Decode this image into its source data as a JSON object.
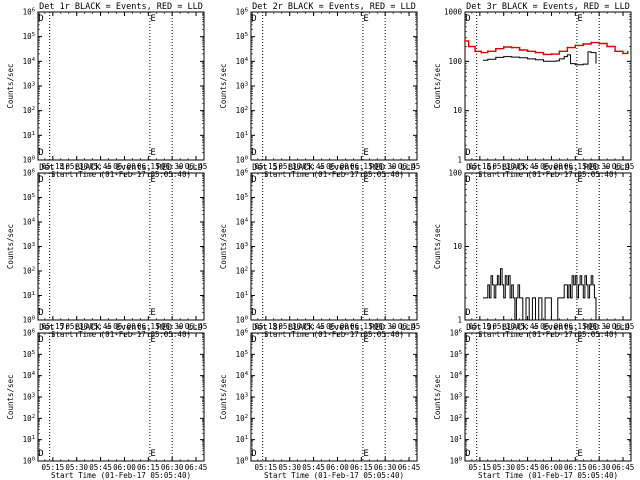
{
  "figure": {
    "background": "#ffffff",
    "event_color": "#000000",
    "lld_color": "#e00000"
  },
  "chart_data": [
    {
      "type": "line",
      "title": "Det 1r BLACK = Events, RED = LLD",
      "xlabel": "Start Time (01-Feb-17 05:05:40)",
      "ylabel": "Counts/sec",
      "log_y": true,
      "ylim": [
        1,
        1000000
      ],
      "yticks": [
        "10^0",
        "10^1",
        "10^2",
        "10^3",
        "10^4",
        "10^5",
        "10^6"
      ],
      "xticks": [
        "05:15",
        "05:30",
        "05:45",
        "06:00",
        "06:15",
        "06:30",
        "06:45"
      ],
      "xlim": [
        "05:05:40",
        "06:50"
      ],
      "vlines": [
        "05:13",
        "06:16",
        "06:30"
      ],
      "markers": [
        {
          "label": "D",
          "x": "05:07:30"
        },
        {
          "label": "E",
          "x": "06:18"
        }
      ],
      "series": []
    },
    {
      "type": "line",
      "title": "Det 2r BLACK = Events, RED = LLD",
      "xlabel": "Start Time (01-Feb-17 05:05:40)",
      "ylabel": "Counts/sec",
      "log_y": true,
      "ylim": [
        1,
        1000000
      ],
      "yticks": [
        "10^0",
        "10^1",
        "10^2",
        "10^3",
        "10^4",
        "10^5",
        "10^6"
      ],
      "xticks": [
        "05:15",
        "05:30",
        "05:45",
        "06:00",
        "06:15",
        "06:30",
        "06:45"
      ],
      "xlim": [
        "05:05:40",
        "06:50"
      ],
      "vlines": [
        "05:13",
        "06:16",
        "06:30"
      ],
      "markers": [
        {
          "label": "D",
          "x": "05:07:30"
        },
        {
          "label": "E",
          "x": "06:18"
        }
      ],
      "series": []
    },
    {
      "type": "line",
      "title": "Det 3r BLACK = Events, RED = LLD",
      "xlabel": "Start Time (01-Feb-17 05:05:40)",
      "ylabel": "Counts/sec",
      "log_y": true,
      "ylim": [
        1,
        1000
      ],
      "yticks": [
        "1",
        "10",
        "100",
        "1000"
      ],
      "xticks": [
        "05:15",
        "05:30",
        "05:45",
        "06:00",
        "06:15",
        "06:30",
        "06:45"
      ],
      "xlim": [
        "05:05:40",
        "06:50"
      ],
      "vlines": [
        "05:13",
        "06:16",
        "06:30"
      ],
      "markers": [
        {
          "label": "D",
          "x": "05:07:30"
        },
        {
          "label": "E",
          "x": "06:18"
        }
      ],
      "series": [
        {
          "role": "events",
          "color": "#000000",
          "x": [
            "05:17",
            "05:20",
            "05:25",
            "05:30",
            "05:35",
            "05:40",
            "05:45",
            "05:50",
            "05:55",
            "06:00",
            "06:03",
            "06:05",
            "06:08",
            "06:10",
            "06:12",
            "06:15",
            "06:18",
            "06:20",
            "06:23",
            "06:25",
            "06:28"
          ],
          "y": [
            105,
            110,
            120,
            125,
            122,
            118,
            112,
            108,
            100,
            100,
            102,
            112,
            125,
            135,
            90,
            85,
            85,
            88,
            155,
            150,
            90
          ]
        },
        {
          "role": "lld",
          "color": "#e00000",
          "x": [
            "05:05:40",
            "05:08",
            "05:12",
            "05:16",
            "05:20",
            "05:25",
            "05:30",
            "05:35",
            "05:40",
            "05:45",
            "05:50",
            "05:55",
            "06:00",
            "06:05",
            "06:10",
            "06:15",
            "06:20",
            "06:25",
            "06:30",
            "06:35",
            "06:40",
            "06:45",
            "06:48"
          ],
          "y": [
            260,
            200,
            160,
            150,
            160,
            180,
            195,
            190,
            170,
            160,
            150,
            138,
            140,
            160,
            190,
            210,
            225,
            240,
            230,
            200,
            160,
            145,
            155
          ]
        }
      ]
    },
    {
      "type": "line",
      "title": "Det 4r BLACK = Events, RED = LLD",
      "xlabel": "Start Time (01-Feb-17 05:05:40)",
      "ylabel": "Counts/sec",
      "log_y": true,
      "ylim": [
        1,
        1000000
      ],
      "yticks": [
        "10^0",
        "10^1",
        "10^2",
        "10^3",
        "10^4",
        "10^5",
        "10^6"
      ],
      "xticks": [
        "05:15",
        "05:30",
        "05:45",
        "06:00",
        "06:15",
        "06:30",
        "06:45"
      ],
      "xlim": [
        "05:05:40",
        "06:50"
      ],
      "vlines": [
        "05:13",
        "06:16",
        "06:30"
      ],
      "markers": [
        {
          "label": "D",
          "x": "05:07:30"
        },
        {
          "label": "E",
          "x": "06:18"
        }
      ],
      "series": []
    },
    {
      "type": "line",
      "title": "Det 5r BLACK = Events, RED = LLD",
      "xlabel": "Start Time (01-Feb-17 05:05:40)",
      "ylabel": "Counts/sec",
      "log_y": true,
      "ylim": [
        1,
        1000000
      ],
      "yticks": [
        "10^0",
        "10^1",
        "10^2",
        "10^3",
        "10^4",
        "10^5",
        "10^6"
      ],
      "xticks": [
        "05:15",
        "05:30",
        "05:45",
        "06:00",
        "06:15",
        "06:30",
        "06:45"
      ],
      "xlim": [
        "05:05:40",
        "06:50"
      ],
      "vlines": [
        "05:13",
        "06:16",
        "06:30"
      ],
      "markers": [
        {
          "label": "D",
          "x": "05:07:30"
        },
        {
          "label": "E",
          "x": "06:18"
        }
      ],
      "series": []
    },
    {
      "type": "line",
      "title": "Det 6r BLACK = Events, RED = LLD",
      "xlabel": "Start Time (01-Feb-17 05:05:40)",
      "ylabel": "Counts/sec",
      "log_y": true,
      "ylim": [
        1,
        100
      ],
      "yticks": [
        "1",
        "10",
        "100"
      ],
      "xticks": [
        "05:15",
        "05:30",
        "05:45",
        "06:00",
        "06:15",
        "06:30",
        "06:45"
      ],
      "xlim": [
        "05:05:40",
        "06:50"
      ],
      "vlines": [
        "05:13",
        "06:16",
        "06:30"
      ],
      "markers": [
        {
          "label": "D",
          "x": "05:07:30"
        },
        {
          "label": "E",
          "x": "06:18"
        }
      ],
      "series": [
        {
          "role": "events",
          "color": "#000000",
          "x": [
            "05:17",
            "05:19",
            "05:20",
            "05:21",
            "05:22",
            "05:23",
            "05:24",
            "05:25",
            "05:26",
            "05:27",
            "05:28",
            "05:29",
            "05:30",
            "05:31",
            "05:32",
            "05:33",
            "05:34",
            "05:35",
            "05:36",
            "05:37",
            "05:38",
            "05:39",
            "05:40",
            "05:42",
            "05:44",
            "05:46",
            "05:48",
            "05:50",
            "05:52",
            "05:54",
            "05:56",
            "05:58",
            "06:00",
            "06:02",
            "06:04",
            "06:06",
            "06:08",
            "06:10",
            "06:11",
            "06:12",
            "06:13",
            "06:14",
            "06:15",
            "06:16",
            "06:17",
            "06:18",
            "06:19",
            "06:20",
            "06:21",
            "06:22",
            "06:23",
            "06:24",
            "06:25",
            "06:26",
            "06:27",
            "06:28"
          ],
          "y": [
            2,
            2,
            3,
            2,
            4,
            3,
            2,
            3,
            4,
            3,
            5,
            3,
            2,
            4,
            3,
            4,
            2,
            3,
            2,
            1,
            2,
            3,
            2,
            1,
            2,
            1,
            2,
            1,
            2,
            1,
            2,
            2,
            1,
            1,
            2,
            2,
            3,
            2,
            3,
            2,
            4,
            3,
            4,
            2,
            3,
            4,
            3,
            2,
            4,
            3,
            2,
            3,
            4,
            3,
            2,
            1
          ]
        }
      ]
    },
    {
      "type": "line",
      "title": "Det 7r BLACK = Events, RED = LLD",
      "xlabel": "Start Time (01-Feb-17 05:05:40)",
      "ylabel": "Counts/sec",
      "log_y": true,
      "ylim": [
        1,
        1000000
      ],
      "yticks": [
        "10^0",
        "10^1",
        "10^2",
        "10^3",
        "10^4",
        "10^5",
        "10^6"
      ],
      "xticks": [
        "05:15",
        "05:30",
        "05:45",
        "06:00",
        "06:15",
        "06:30",
        "06:45"
      ],
      "xlim": [
        "05:05:40",
        "06:50"
      ],
      "vlines": [
        "05:13",
        "06:16",
        "06:30"
      ],
      "markers": [
        {
          "label": "D",
          "x": "05:07:30"
        },
        {
          "label": "E",
          "x": "06:18"
        }
      ],
      "series": []
    },
    {
      "type": "line",
      "title": "Det 8r BLACK = Events, RED = LLD",
      "xlabel": "Start Time (01-Feb-17 05:05:40)",
      "ylabel": "Counts/sec",
      "log_y": true,
      "ylim": [
        1,
        1000000
      ],
      "yticks": [
        "10^0",
        "10^1",
        "10^2",
        "10^3",
        "10^4",
        "10^5",
        "10^6"
      ],
      "xticks": [
        "05:15",
        "05:30",
        "05:45",
        "06:00",
        "06:15",
        "06:30",
        "06:45"
      ],
      "xlim": [
        "05:05:40",
        "06:50"
      ],
      "vlines": [
        "05:13",
        "06:16",
        "06:30"
      ],
      "markers": [
        {
          "label": "D",
          "x": "05:07:30"
        },
        {
          "label": "E",
          "x": "06:18"
        }
      ],
      "series": []
    },
    {
      "type": "line",
      "title": "Det 9r BLACK = Events, RED = LLD",
      "xlabel": "Start Time (01-Feb-17 05:05:40)",
      "ylabel": "Counts/sec",
      "log_y": true,
      "ylim": [
        1,
        1000000
      ],
      "yticks": [
        "10^0",
        "10^1",
        "10^2",
        "10^3",
        "10^4",
        "10^5",
        "10^6"
      ],
      "xticks": [
        "05:15",
        "05:30",
        "05:45",
        "06:00",
        "06:15",
        "06:30",
        "06:45"
      ],
      "xlim": [
        "05:05:40",
        "06:50"
      ],
      "vlines": [
        "05:13",
        "06:16",
        "06:30"
      ],
      "markers": [
        {
          "label": "D",
          "x": "05:07:30"
        },
        {
          "label": "E",
          "x": "06:18"
        }
      ],
      "series": []
    }
  ]
}
